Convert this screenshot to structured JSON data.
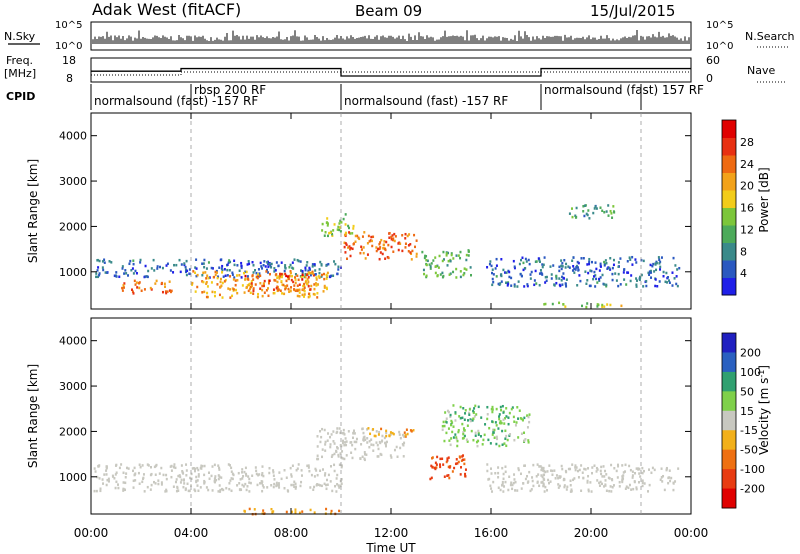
{
  "header": {
    "title": "Adak West (fitACF)",
    "beam": "Beam 09",
    "date": "15/Jul/2015"
  },
  "panels": {
    "nsky": {
      "label": "N.Sky",
      "tick_top": "10^5",
      "tick_bottom": "10^0",
      "right_label": "N.Search"
    },
    "freq": {
      "label_line1": "Freq.",
      "label_line2": "[MHz]",
      "tick_top": "18",
      "tick_bottom": "8",
      "right_top": "60",
      "right_bottom": "0",
      "right_label": "Nave"
    },
    "cpid": {
      "label": "CPID",
      "segments": [
        {
          "text": "normalsound (fast) -157 RF",
          "start": 0.0,
          "end": 4.0
        },
        {
          "text": "rbsp 200 RF",
          "start": 4.0,
          "end": 10.0
        },
        {
          "text": "normalsound (fast) -157 RF",
          "start": 10.0,
          "end": 18.0
        },
        {
          "text": "normalsound (fast) 157 RF",
          "start": 18.0,
          "end": 22.0
        }
      ]
    }
  },
  "colorbars": {
    "power": {
      "label": "Power [dB]",
      "ticks": [
        "4",
        "8",
        "12",
        "16",
        "20",
        "24",
        "28"
      ],
      "colors": [
        "#1f1fe8",
        "#2a58c0",
        "#3a8a8a",
        "#4caa5a",
        "#7cc63a",
        "#f2cc1a",
        "#f2a21a",
        "#ee6a12",
        "#e83012",
        "#e00000"
      ]
    },
    "velocity": {
      "label": "Velocity [m s",
      "label_sup": "-1",
      "label_end": "]",
      "ticks": [
        "200",
        "100",
        "50",
        "15",
        "-15",
        "-50",
        "-100",
        "-200"
      ],
      "colors": [
        "#2020c0",
        "#2a60c0",
        "#30a070",
        "#7fd04a",
        "#c8c8c0",
        "#f2b01a",
        "#ee7012",
        "#e83c12",
        "#e00000"
      ]
    }
  },
  "chart_data": {
    "type": "heatmap",
    "xlabel": "Time UT",
    "ylabel": "Slant Range [km]",
    "x_ticks": [
      "00:00",
      "04:00",
      "08:00",
      "12:00",
      "16:00",
      "20:00",
      "00:00"
    ],
    "x_tick_hours": [
      0,
      4,
      8,
      12,
      16,
      20,
      24
    ],
    "xlim": [
      0,
      24
    ],
    "ylim": [
      180,
      4500
    ],
    "y_ticks": [
      1000,
      2000,
      3000,
      4000
    ],
    "dashed_hours": [
      4,
      10,
      22
    ],
    "cpid_change_hours": [
      4,
      10,
      18,
      22
    ],
    "freq_steps": [
      {
        "start": 0.0,
        "end": 3.6,
        "mhz": 12.5
      },
      {
        "start": 3.6,
        "end": 10.0,
        "mhz": 13.6
      },
      {
        "start": 10.0,
        "end": 18.0,
        "mhz": 10.5
      },
      {
        "start": 18.0,
        "end": 24.0,
        "mhz": 13.6
      }
    ],
    "power_regions": [
      {
        "t0": 0.1,
        "t1": 10.0,
        "r0": 900,
        "r1": 1300,
        "level": 6
      },
      {
        "t0": 1.2,
        "t1": 3.2,
        "r0": 550,
        "r1": 850,
        "level": 24
      },
      {
        "t0": 4.0,
        "t1": 9.5,
        "r0": 450,
        "r1": 1050,
        "level": 20
      },
      {
        "t0": 6.0,
        "t1": 9.0,
        "r0": 600,
        "r1": 1000,
        "level": 25
      },
      {
        "t0": 9.2,
        "t1": 10.5,
        "r0": 1800,
        "r1": 2300,
        "level": 14
      },
      {
        "t0": 10.0,
        "t1": 13.0,
        "r0": 1300,
        "r1": 1900,
        "level": 24
      },
      {
        "t0": 13.2,
        "t1": 15.2,
        "r0": 900,
        "r1": 1500,
        "level": 12
      },
      {
        "t0": 15.8,
        "t1": 23.5,
        "r0": 700,
        "r1": 1350,
        "level": 6
      },
      {
        "t0": 19.0,
        "t1": 21.0,
        "r0": 2200,
        "r1": 2500,
        "level": 10
      },
      {
        "t0": 18.0,
        "t1": 21.5,
        "r0": 250,
        "r1": 350,
        "level": 16
      }
    ],
    "velocity_regions": [
      {
        "t0": 0.1,
        "t1": 10.0,
        "r0": 700,
        "r1": 1300,
        "level": 0
      },
      {
        "t0": 9.0,
        "t1": 12.5,
        "r0": 1400,
        "r1": 2100,
        "level": 0
      },
      {
        "t0": 11.0,
        "t1": 13.0,
        "r0": 1900,
        "r1": 2100,
        "level": -30
      },
      {
        "t0": 13.5,
        "t1": 15.0,
        "r0": 900,
        "r1": 1500,
        "level": -80
      },
      {
        "t0": 14.0,
        "t1": 17.5,
        "r0": 1700,
        "r1": 2600,
        "level": 25
      },
      {
        "t0": 15.8,
        "t1": 23.5,
        "r0": 700,
        "r1": 1300,
        "level": 0
      },
      {
        "t0": 6.0,
        "t1": 10.0,
        "r0": 200,
        "r1": 320,
        "level": -30
      }
    ]
  }
}
